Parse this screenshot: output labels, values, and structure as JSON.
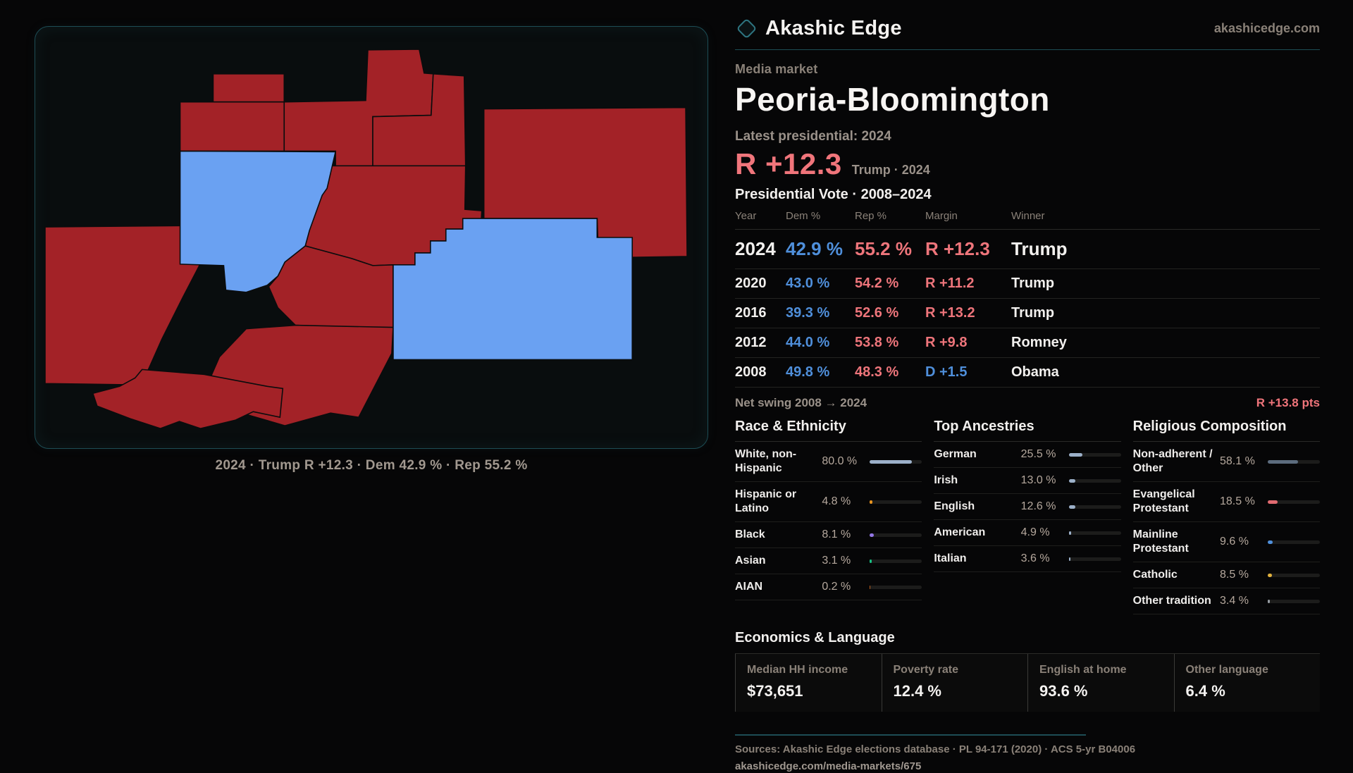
{
  "brand": {
    "name": "Akashic Edge",
    "site": "akashicedge.com"
  },
  "map": {
    "caption": "2024 · Trump R +12.3 · Dem 42.9 % · Rep 55.2 %",
    "colors": {
      "rep": "#a32227",
      "dem": "#6aa1f2"
    }
  },
  "header": {
    "kicker": "Media market",
    "title": "Peoria-Bloomington",
    "latest_label": "Latest presidential: 2024",
    "margin_value": "R +12.3",
    "margin_detail": "Trump · 2024"
  },
  "vote_table": {
    "title": "Presidential Vote · 2008–2024",
    "columns": [
      "Year",
      "Dem %",
      "Rep %",
      "Margin",
      "Winner"
    ],
    "rows": [
      {
        "year": "2024",
        "dem": "42.9 %",
        "rep": "55.2 %",
        "margin": "R +12.3",
        "winner": "Trump",
        "margin_party": "R",
        "featured": true
      },
      {
        "year": "2020",
        "dem": "43.0 %",
        "rep": "54.2 %",
        "margin": "R +11.2",
        "winner": "Trump",
        "margin_party": "R"
      },
      {
        "year": "2016",
        "dem": "39.3 %",
        "rep": "52.6 %",
        "margin": "R +13.2",
        "winner": "Trump",
        "margin_party": "R"
      },
      {
        "year": "2012",
        "dem": "44.0 %",
        "rep": "53.8 %",
        "margin": "R +9.8",
        "winner": "Romney",
        "margin_party": "R"
      },
      {
        "year": "2008",
        "dem": "49.8 %",
        "rep": "48.3 %",
        "margin": "D +1.5",
        "winner": "Obama",
        "margin_party": "D"
      }
    ],
    "net_swing_label": "Net swing 2008 → 2024",
    "net_swing_value": "R +13.8 pts"
  },
  "demographics": [
    {
      "title": "Race & Ethnicity",
      "rows": [
        {
          "label": "White, non-Hispanic",
          "value": "80.0 %",
          "pct": 80.0,
          "color": "#9cb0c9"
        },
        {
          "label": "Hispanic or Latino",
          "value": "4.8 %",
          "pct": 4.8,
          "color": "#e8941f"
        },
        {
          "label": "Black",
          "value": "8.1 %",
          "pct": 8.1,
          "color": "#9377e6"
        },
        {
          "label": "Asian",
          "value": "3.1 %",
          "pct": 3.1,
          "color": "#17c083"
        },
        {
          "label": "AIAN",
          "value": "0.2 %",
          "pct": 0.2,
          "color": "#bd5f1d"
        }
      ]
    },
    {
      "title": "Top Ancestries",
      "rows": [
        {
          "label": "German",
          "value": "25.5 %",
          "pct": 25.5,
          "color": "#9cb0c9"
        },
        {
          "label": "Irish",
          "value": "13.0 %",
          "pct": 13.0,
          "color": "#9cb0c9"
        },
        {
          "label": "English",
          "value": "12.6 %",
          "pct": 12.6,
          "color": "#9cb0c9"
        },
        {
          "label": "American",
          "value": "4.9 %",
          "pct": 4.9,
          "color": "#9cb0c9"
        },
        {
          "label": "Italian",
          "value": "3.6 %",
          "pct": 3.6,
          "color": "#9cb0c9"
        }
      ]
    },
    {
      "title": "Religious Composition",
      "rows": [
        {
          "label": "Non-adherent / Other",
          "value": "58.1 %",
          "pct": 58.1,
          "color": "#5c6c7e"
        },
        {
          "label": "Evangelical Protestant",
          "value": "18.5 %",
          "pct": 18.5,
          "color": "#e06a70"
        },
        {
          "label": "Mainline Protestant",
          "value": "9.6 %",
          "pct": 9.6,
          "color": "#4f8fdb"
        },
        {
          "label": "Catholic",
          "value": "8.5 %",
          "pct": 8.5,
          "color": "#e2b23e"
        },
        {
          "label": "Other tradition",
          "value": "3.4 %",
          "pct": 3.4,
          "color": "#959ba1"
        }
      ]
    }
  ],
  "economics": {
    "title": "Economics & Language",
    "stats": [
      {
        "label": "Median HH income",
        "value": "$73,651"
      },
      {
        "label": "Poverty rate",
        "value": "12.4 %"
      },
      {
        "label": "English at home",
        "value": "93.6 %"
      },
      {
        "label": "Other language",
        "value": "6.4 %"
      }
    ]
  },
  "footer": {
    "sources": "Sources: Akashic Edge elections database · PL 94-171 (2020) · ACS 5-yr B04006",
    "url": "akashicedge.com/media-markets/675"
  }
}
